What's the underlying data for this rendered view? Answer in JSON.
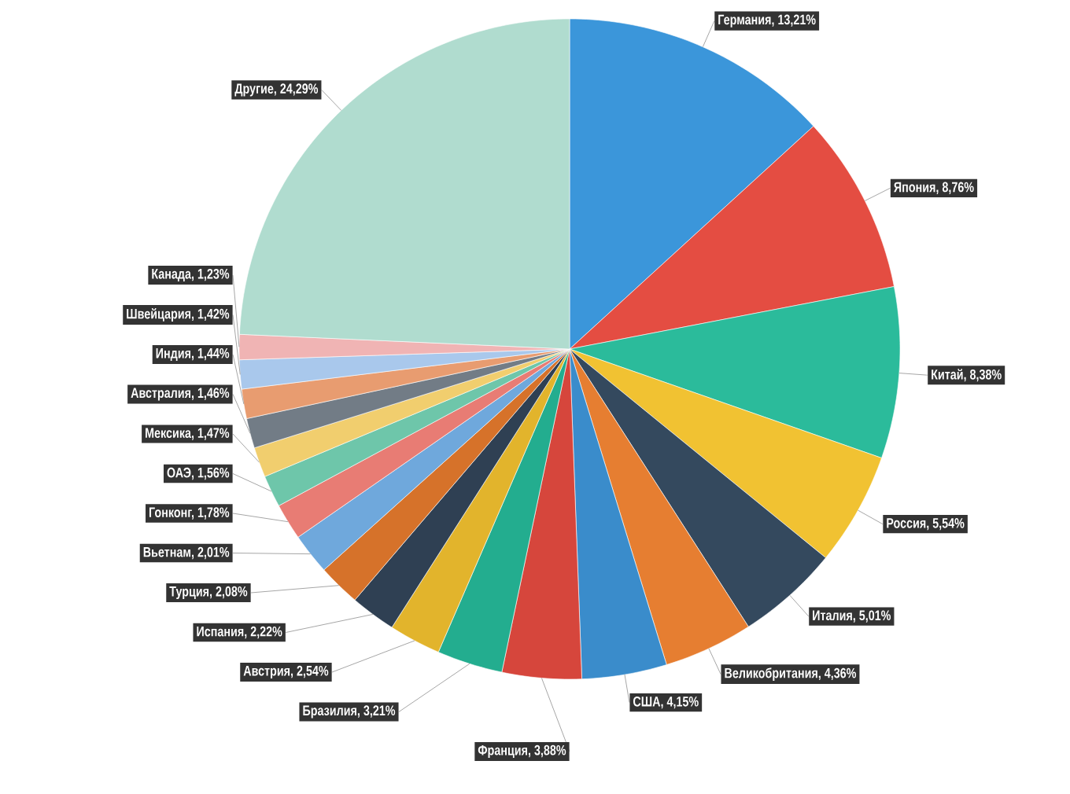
{
  "chart_data": {
    "type": "pie",
    "categories": [
      "Германия, 13,21%",
      "Япония, 8,76%",
      "Китай, 8,38%",
      "Россия, 5,54%",
      "Италия, 5,01%",
      "Великобритания, 4,36%",
      "США, 4,15%",
      "Франция, 3,88%",
      "Бразилия, 3,21%",
      "Австрия, 2,54%",
      "Испания, 2,22%",
      "Турция, 2,08%",
      "Вьетнам, 2,01%",
      "Гонконг, 1,78%",
      "ОАЭ, 1,56%",
      "Мексика, 1,47%",
      "Австралия, 1,46%",
      "Индия, 1,44%",
      "Швейцария, 1,42%",
      "Канада, 1,23%",
      "Другие, 24,29%"
    ],
    "values": [
      13.21,
      8.76,
      8.38,
      5.54,
      5.01,
      4.36,
      4.15,
      3.88,
      3.21,
      2.54,
      2.22,
      2.08,
      2.01,
      1.78,
      1.56,
      1.47,
      1.46,
      1.44,
      1.42,
      1.23,
      24.29
    ],
    "colors": [
      "#3b96da",
      "#e44d42",
      "#2bbb9b",
      "#f1c232",
      "#34495e",
      "#e67e31",
      "#3a8ccb",
      "#d6463c",
      "#23ad8f",
      "#e2b42c",
      "#2f4053",
      "#d6722a",
      "#6fa8dc",
      "#e87c74",
      "#6ec6aa",
      "#f1ce6e",
      "#727c86",
      "#e89c70",
      "#a9c8ec",
      "#f0b4b4",
      "#b0dccf"
    ]
  }
}
